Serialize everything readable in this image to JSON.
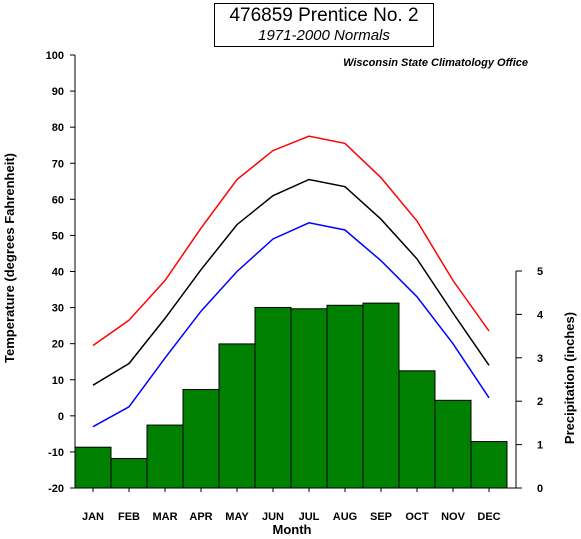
{
  "title": "476859 Prentice No. 2",
  "subtitle": "1971-2000 Normals",
  "credit": "Wisconsin State Climatology Office",
  "chart_data": {
    "type": "bar+line",
    "categories": [
      "JAN",
      "FEB",
      "MAR",
      "APR",
      "MAY",
      "JUN",
      "JUL",
      "AUG",
      "SEP",
      "OCT",
      "NOV",
      "DEC"
    ],
    "xlabel": "Month",
    "ylabel_left": "Temperature (degrees Fahrenheit)",
    "ylabel_right": "Precipitation (inches)",
    "ylim_left": [
      -20,
      100
    ],
    "ylim_right": [
      0,
      5
    ],
    "yticks_left": [
      -20,
      -10,
      0,
      10,
      20,
      30,
      40,
      50,
      60,
      70,
      80,
      90,
      100
    ],
    "yticks_right": [
      0,
      1,
      2,
      3,
      4,
      5
    ],
    "grid": false,
    "bars": {
      "axis": "right",
      "color": "#008000",
      "values": [
        0.94,
        0.68,
        1.45,
        2.27,
        3.32,
        4.16,
        4.13,
        4.21,
        4.26,
        2.7,
        2.02,
        1.07
      ]
    },
    "series": [
      {
        "axis": "left",
        "color": "#ff0000",
        "values": [
          19.5,
          26.5,
          37.5,
          52.0,
          65.5,
          73.5,
          77.5,
          75.5,
          66.0,
          54.0,
          37.5,
          23.5
        ]
      },
      {
        "axis": "left",
        "color": "#000000",
        "values": [
          8.5,
          14.5,
          27.0,
          40.5,
          53.0,
          61.0,
          65.5,
          63.5,
          54.5,
          43.5,
          28.5,
          14.0
        ]
      },
      {
        "axis": "left",
        "color": "#0000ff",
        "values": [
          -3.0,
          2.5,
          16.0,
          29.0,
          40.0,
          49.0,
          53.5,
          51.5,
          43.0,
          33.0,
          20.0,
          5.0
        ]
      }
    ]
  }
}
